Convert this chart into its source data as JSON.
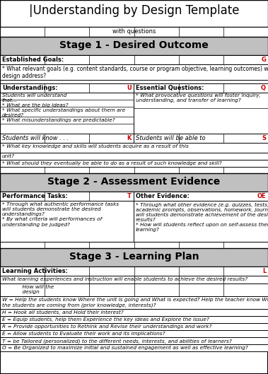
{
  "title": "|Understanding by Design Template",
  "subtitle": "with questions",
  "stage1_header": "Stage 1 - Desired Outcome",
  "stage2_header": "Stage 2 - Assessment Evidence",
  "stage3_header": "Stage 3 - Learning Plan",
  "header_bg": "#c0c0c0",
  "bg_color": "#f5f5f5",
  "border_color": "#000000",
  "red_color": "#cc0000",
  "established_goals_label": "Established Goals:",
  "established_goals_letter": "G",
  "established_goals_text": "* What relevant goals (e.g. content standards, course or program objective, learning outcomes) will this\ndesign address?",
  "understandings_label": "Understandings:",
  "understandings_letter": "U",
  "understandings_text": "Students will understand\nthat...\n* What are the big ideas?\n* What specific understandings about them are\ndesired?\n* What misunderstandings are predictable?",
  "essential_q_label": "Essential Questions:",
  "essential_q_letter": "Q",
  "essential_q_text": "* What provocative questions will foster inquiry,\nunderstanding, and transfer of learning?",
  "know_label": "Students will know . . .",
  "know_letter": "K",
  "able_label": "Students will be able to",
  "able_letter": "S",
  "know_text1": "* What key knowledge and skills will students acquire as a result of this",
  "know_text2": "unit?",
  "know_text3": "* What should they eventually be able to do as a result of such knowledge and skill?",
  "perf_tasks_label": "Performance Tasks:",
  "perf_tasks_letter": "T",
  "other_evidence_label": "Other Evidence:",
  "other_evidence_letter": "OE",
  "perf_tasks_text": "* Through what authentic performance tasks\nwill students demonstrate the desired\nunderstandings?\n* By what criteria will performances of\nunderstanding be judged?",
  "other_evidence_text": "* Through what other evidence (e.g. quizzes, tests,\nacademic prompts, observations, homework, journals)\nwill students demonstrate achievement of the desired\nresults?\n* How will students reflect upon on self-assess their\nlearning?",
  "learning_act_label": "Learning Activities:",
  "learning_act_letter": "L",
  "learning_act_text1": "What learning experiences and instruction will enable students to achieve the desired results?",
  "learning_act_text2": "            How will the\n            design",
  "learning_act_where": "W = Help the students know Where the unit is going and What is expected? Help the teacher know Where\nthe students are coming from (prior knowledge, interests)?",
  "learning_act_hook": "H = Hook all students, and Hold their interest?",
  "learning_act_equip": "E = Equip students, help them Experience the key ideas and Explore the issue?",
  "learning_act_rethink": "R = Provide opportunities to Rethink and Revise their understandings and work?",
  "learning_act_eval": "E = Allow students to Evaluate their work and its implications?",
  "learning_act_tailor": "T = be Tailored (personalized) to the different needs, interests, and abilities of learners?",
  "learning_act_organize": "O = Be Organized to maximize initial and sustained engagement as well as effective learning?"
}
